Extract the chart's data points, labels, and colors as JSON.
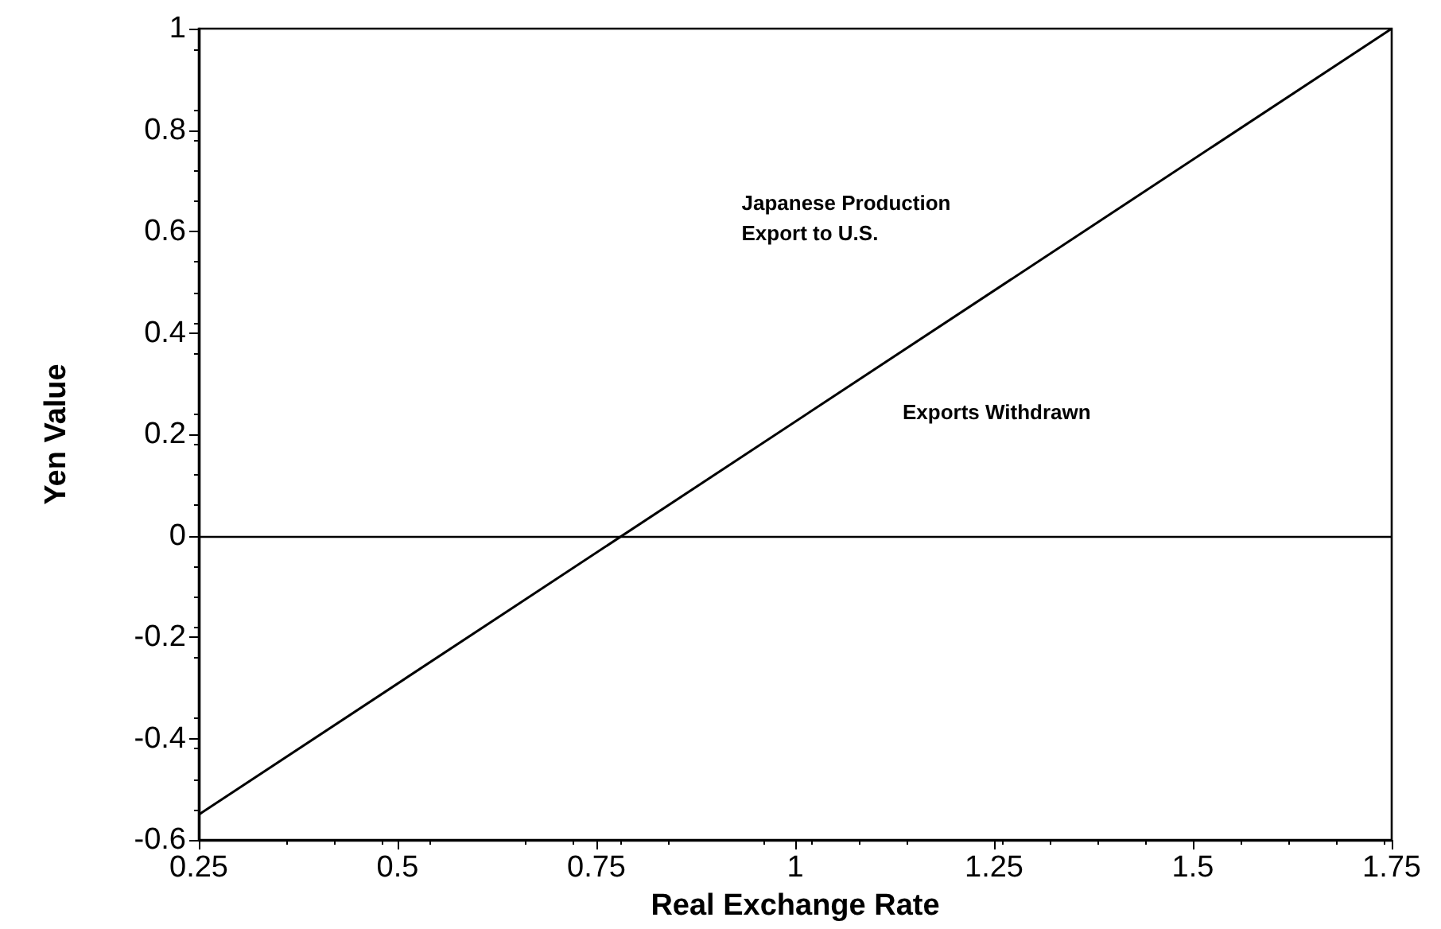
{
  "chart_data": {
    "type": "line",
    "xlabel": "Real Exchange Rate",
    "ylabel": "Yen Value",
    "x": [
      0.25,
      1.75
    ],
    "series": [
      {
        "color": "#000000",
        "values": [
          -0.55,
          1.0
        ]
      }
    ],
    "xlim": [
      0.25,
      1.75
    ],
    "xticks": [
      0.25,
      0.5,
      0.75,
      1,
      1.25,
      1.5,
      1.75
    ],
    "ylim": [
      -0.6,
      1
    ],
    "yticks": [
      -0.6,
      -0.4,
      -0.2,
      0,
      0.2,
      0.4,
      0.6,
      0.8,
      1
    ],
    "ref_lines": [
      {
        "axis": "y",
        "value": 0,
        "color": "#000000"
      }
    ],
    "annotations": [
      "Japanese Production\nExport to U.S.",
      "Exports Withdrawn"
    ],
    "grid": false,
    "marker": "none",
    "line_style": "solid"
  }
}
